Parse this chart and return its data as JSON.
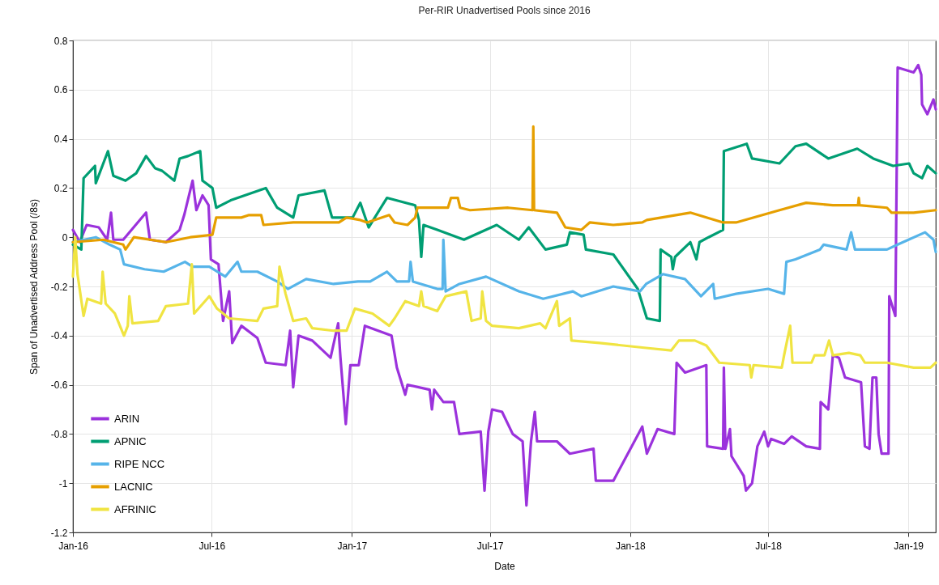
{
  "chart_data": {
    "type": "line",
    "title": "Per-RIR Unadvertised Pools since 2016",
    "xlabel": "Date",
    "ylabel": "Span of Unadvertised Address Pool (/8s)",
    "xlim": [
      "2016-01-01",
      "2019-02-06"
    ],
    "xticks": [
      {
        "value": "2016-01-01",
        "label": "Jan-16"
      },
      {
        "value": "2016-07-01",
        "label": "Jul-16"
      },
      {
        "value": "2017-01-01",
        "label": "Jan-17"
      },
      {
        "value": "2017-07-01",
        "label": "Jul-17"
      },
      {
        "value": "2018-01-01",
        "label": "Jan-18"
      },
      {
        "value": "2018-07-01",
        "label": "Jul-18"
      },
      {
        "value": "2019-01-01",
        "label": "Jan-19"
      }
    ],
    "ylim": [
      -1.2,
      0.8
    ],
    "yticks": [
      -1.2,
      -1,
      -0.8,
      -0.6,
      -0.4,
      -0.2,
      0,
      0.2,
      0.4,
      0.6,
      0.8
    ],
    "grid": true,
    "legend": "bottom left",
    "marker": "none",
    "line_style": "solid",
    "series": [
      {
        "name": "ARIN",
        "color": "#9b32dc",
        "x": [
          "2016-01-01",
          "2016-01-10",
          "2016-01-19",
          "2016-02-04",
          "2016-02-15",
          "2016-02-20",
          "2016-02-23",
          "2016-03-07",
          "2016-04-06",
          "2016-04-11",
          "2016-05-02",
          "2016-05-20",
          "2016-05-26",
          "2016-06-06",
          "2016-06-11",
          "2016-06-19",
          "2016-06-27",
          "2016-06-30",
          "2016-07-10",
          "2016-07-16",
          "2016-07-24",
          "2016-07-28",
          "2016-08-09",
          "2016-08-30",
          "2016-09-10",
          "2016-10-06",
          "2016-10-12",
          "2016-10-16",
          "2016-10-23",
          "2016-11-10",
          "2016-12-04",
          "2016-12-14",
          "2016-12-17",
          "2016-12-24",
          "2016-12-30",
          "2017-01-10",
          "2017-01-18",
          "2017-02-22",
          "2017-03-01",
          "2017-03-12",
          "2017-03-15",
          "2017-04-13",
          "2017-04-16",
          "2017-04-19",
          "2017-05-01",
          "2017-05-15",
          "2017-05-22",
          "2017-06-19",
          "2017-06-24",
          "2017-06-29",
          "2017-07-04",
          "2017-07-17",
          "2017-07-31",
          "2017-08-13",
          "2017-08-18",
          "2017-08-24",
          "2017-08-29",
          "2017-09-01",
          "2017-09-27",
          "2017-10-14",
          "2017-11-14",
          "2017-11-17",
          "2017-12-10",
          "2018-01-17",
          "2018-01-23",
          "2018-02-06",
          "2018-02-28",
          "2018-03-03",
          "2018-03-14",
          "2018-04-11",
          "2018-04-12",
          "2018-05-03",
          "2018-05-04",
          "2018-05-06",
          "2018-05-12",
          "2018-05-14",
          "2018-05-30",
          "2018-06-02",
          "2018-06-10",
          "2018-06-17",
          "2018-06-26",
          "2018-07-01",
          "2018-07-05",
          "2018-07-22",
          "2018-08-01",
          "2018-08-20",
          "2018-09-07",
          "2018-09-08",
          "2018-09-18",
          "2018-09-24",
          "2018-10-02",
          "2018-10-10",
          "2018-10-31",
          "2018-11-05",
          "2018-11-11",
          "2018-11-15",
          "2018-11-20",
          "2018-11-23",
          "2018-11-27",
          "2018-12-06",
          "2018-12-07",
          "2018-12-15",
          "2018-12-18",
          "2019-01-08",
          "2019-01-14",
          "2019-01-18",
          "2019-01-19",
          "2019-01-26",
          "2019-02-03",
          "2019-02-06"
        ],
        "values": [
          0.03,
          -0.02,
          0.05,
          0.04,
          -0.01,
          0.1,
          -0.01,
          -0.01,
          0.1,
          -0.01,
          -0.02,
          0.03,
          0.09,
          0.23,
          0.11,
          0.17,
          0.13,
          -0.09,
          -0.11,
          -0.34,
          -0.22,
          -0.43,
          -0.36,
          -0.41,
          -0.51,
          -0.52,
          -0.38,
          -0.61,
          -0.4,
          -0.42,
          -0.49,
          -0.35,
          -0.49,
          -0.76,
          -0.52,
          -0.52,
          -0.36,
          -0.4,
          -0.53,
          -0.64,
          -0.6,
          -0.62,
          -0.7,
          -0.62,
          -0.67,
          -0.67,
          -0.8,
          -0.79,
          -1.03,
          -0.79,
          -0.7,
          -0.71,
          -0.8,
          -0.83,
          -1.09,
          -0.83,
          -0.71,
          -0.83,
          -0.83,
          -0.88,
          -0.86,
          -0.99,
          -0.99,
          -0.77,
          -0.88,
          -0.78,
          -0.8,
          -0.51,
          -0.55,
          -0.52,
          -0.85,
          -0.86,
          -0.53,
          -0.86,
          -0.78,
          -0.89,
          -0.97,
          -1.03,
          -1,
          -0.85,
          -0.79,
          -0.85,
          -0.82,
          -0.84,
          -0.81,
          -0.85,
          -0.86,
          -0.67,
          -0.7,
          -0.48,
          -0.49,
          -0.57,
          -0.59,
          -0.85,
          -0.86,
          -0.57,
          -0.57,
          -0.8,
          -0.88,
          -0.88,
          -0.24,
          -0.32,
          0.69,
          0.67,
          0.7,
          0.66,
          0.54,
          0.5,
          0.56,
          0.52
        ]
      },
      {
        "name": "APNIC",
        "color": "#009e73",
        "x": [
          "2016-01-01",
          "2016-01-12",
          "2016-01-15",
          "2016-01-30",
          "2016-01-31",
          "2016-02-16",
          "2016-02-23",
          "2016-03-10",
          "2016-03-24",
          "2016-04-06",
          "2016-04-18",
          "2016-04-27",
          "2016-05-13",
          "2016-05-20",
          "2016-05-31",
          "2016-06-16",
          "2016-06-19",
          "2016-07-02",
          "2016-07-07",
          "2016-07-26",
          "2016-09-10",
          "2016-09-25",
          "2016-10-16",
          "2016-10-23",
          "2016-11-26",
          "2016-12-06",
          "2017-01-02",
          "2017-01-12",
          "2017-01-23",
          "2017-02-16",
          "2017-03-25",
          "2017-03-30",
          "2017-04-02",
          "2017-04-05",
          "2017-04-23",
          "2017-05-28",
          "2017-07-10",
          "2017-08-08",
          "2017-08-21",
          "2017-09-12",
          "2017-10-10",
          "2017-10-14",
          "2017-11-01",
          "2017-11-04",
          "2017-12-10",
          "2018-01-11",
          "2018-01-23",
          "2018-02-09",
          "2018-02-10",
          "2018-02-24",
          "2018-02-26",
          "2018-03-01",
          "2018-03-21",
          "2018-03-29",
          "2018-04-02",
          "2018-04-14",
          "2018-05-03",
          "2018-05-04",
          "2018-05-24",
          "2018-06-03",
          "2018-06-10",
          "2018-07-16",
          "2018-08-06",
          "2018-08-20",
          "2018-09-18",
          "2018-10-26",
          "2018-11-16",
          "2018-12-12",
          "2019-01-02",
          "2019-01-08",
          "2019-01-19",
          "2019-01-26",
          "2019-02-06"
        ],
        "values": [
          -0.03,
          -0.05,
          0.24,
          0.29,
          0.22,
          0.35,
          0.25,
          0.23,
          0.26,
          0.33,
          0.28,
          0.27,
          0.23,
          0.32,
          0.33,
          0.35,
          0.23,
          0.2,
          0.12,
          0.15,
          0.2,
          0.12,
          0.08,
          0.17,
          0.19,
          0.08,
          0.08,
          0.14,
          0.04,
          0.16,
          0.13,
          0.07,
          -0.08,
          0.05,
          0.03,
          -0.01,
          0.05,
          -0.01,
          0.04,
          -0.05,
          -0.03,
          0.02,
          0.01,
          -0.05,
          -0.07,
          -0.21,
          -0.33,
          -0.34,
          -0.05,
          -0.08,
          -0.13,
          -0.08,
          -0.02,
          -0.09,
          -0.02,
          0,
          0.03,
          0.35,
          0.37,
          0.38,
          0.32,
          0.3,
          0.37,
          0.38,
          0.32,
          0.36,
          0.32,
          0.29,
          0.3,
          0.26,
          0.24,
          0.29,
          0.26
        ]
      },
      {
        "name": "RIPE NCC",
        "color": "#56b4e9",
        "x": [
          "2016-01-01",
          "2016-01-31",
          "2016-02-18",
          "2016-03-03",
          "2016-03-08",
          "2016-04-04",
          "2016-04-29",
          "2016-05-27",
          "2016-06-06",
          "2016-06-28",
          "2016-07-19",
          "2016-08-04",
          "2016-08-09",
          "2016-08-30",
          "2016-09-25",
          "2016-10-09",
          "2016-11-02",
          "2016-12-08",
          "2017-01-09",
          "2017-01-25",
          "2017-02-16",
          "2017-03-01",
          "2017-03-17",
          "2017-03-19",
          "2017-03-22",
          "2017-04-23",
          "2017-04-30",
          "2017-05-01",
          "2017-05-04",
          "2017-05-22",
          "2017-06-26",
          "2017-08-08",
          "2017-09-09",
          "2017-10-18",
          "2017-10-29",
          "2017-12-10",
          "2018-01-14",
          "2018-01-22",
          "2018-02-13",
          "2018-03-14",
          "2018-04-04",
          "2018-04-20",
          "2018-04-22",
          "2018-05-20",
          "2018-07-01",
          "2018-07-22",
          "2018-07-25",
          "2018-08-06",
          "2018-09-07",
          "2018-09-12",
          "2018-10-12",
          "2018-10-18",
          "2018-10-23",
          "2018-12-04",
          "2018-12-18",
          "2019-01-23",
          "2019-02-03",
          "2019-02-06"
        ],
        "values": [
          -0.02,
          0,
          -0.03,
          -0.05,
          -0.11,
          -0.13,
          -0.14,
          -0.1,
          -0.12,
          -0.12,
          -0.16,
          -0.1,
          -0.14,
          -0.14,
          -0.18,
          -0.21,
          -0.17,
          -0.19,
          -0.18,
          -0.18,
          -0.14,
          -0.18,
          -0.18,
          -0.1,
          -0.18,
          -0.21,
          -0.21,
          -0.01,
          -0.22,
          -0.19,
          -0.16,
          -0.22,
          -0.25,
          -0.22,
          -0.24,
          -0.2,
          -0.22,
          -0.19,
          -0.15,
          -0.17,
          -0.24,
          -0.19,
          -0.25,
          -0.23,
          -0.21,
          -0.23,
          -0.1,
          -0.09,
          -0.05,
          -0.03,
          -0.05,
          0.02,
          -0.05,
          -0.05,
          -0.03,
          0.02,
          -0.01,
          -0.06
        ]
      },
      {
        "name": "LACNIC",
        "color": "#e69f00",
        "x": [
          "2016-01-01",
          "2016-02-10",
          "2016-03-07",
          "2016-03-10",
          "2016-03-21",
          "2016-05-02",
          "2016-06-03",
          "2016-07-02",
          "2016-07-07",
          "2016-08-09",
          "2016-08-19",
          "2016-09-04",
          "2016-09-07",
          "2016-10-16",
          "2016-12-15",
          "2016-12-25",
          "2017-01-12",
          "2017-01-21",
          "2017-02-19",
          "2017-02-26",
          "2017-03-15",
          "2017-03-25",
          "2017-03-28",
          "2017-05-07",
          "2017-05-11",
          "2017-05-20",
          "2017-05-23",
          "2017-06-05",
          "2017-07-25",
          "2017-08-26",
          "2017-08-27",
          "2017-08-28",
          "2017-09-27",
          "2017-10-08",
          "2017-10-29",
          "2017-11-09",
          "2017-12-10",
          "2018-01-17",
          "2018-01-23",
          "2018-03-21",
          "2018-05-03",
          "2018-05-20",
          "2018-07-16",
          "2018-08-20",
          "2018-09-24",
          "2018-10-27",
          "2018-10-28",
          "2018-10-29",
          "2018-12-04",
          "2018-12-10",
          "2019-01-08",
          "2019-02-06"
        ],
        "values": [
          -0.02,
          -0.01,
          -0.03,
          -0.05,
          0,
          -0.02,
          0,
          0.01,
          0.08,
          0.08,
          0.09,
          0.09,
          0.05,
          0.06,
          0.06,
          0.08,
          0.07,
          0.06,
          0.09,
          0.06,
          0.05,
          0.08,
          0.12,
          0.12,
          0.16,
          0.16,
          0.12,
          0.11,
          0.12,
          0.11,
          0.45,
          0.11,
          0.1,
          0.04,
          0.03,
          0.06,
          0.05,
          0.06,
          0.07,
          0.1,
          0.06,
          0.06,
          0.11,
          0.14,
          0.13,
          0.13,
          0.16,
          0.13,
          0.12,
          0.1,
          0.1,
          0.11
        ]
      },
      {
        "name": "AFRINIC",
        "color": "#f0e442",
        "x": [
          "2016-01-01",
          "2016-01-04",
          "2016-01-07",
          "2016-01-15",
          "2016-01-20",
          "2016-02-07",
          "2016-02-09",
          "2016-02-13",
          "2016-02-25",
          "2016-03-08",
          "2016-03-13",
          "2016-03-15",
          "2016-03-19",
          "2016-04-22",
          "2016-05-02",
          "2016-05-31",
          "2016-06-05",
          "2016-06-08",
          "2016-06-28",
          "2016-07-08",
          "2016-07-24",
          "2016-08-30",
          "2016-09-07",
          "2016-09-25",
          "2016-09-28",
          "2016-10-06",
          "2016-10-16",
          "2016-11-02",
          "2016-11-10",
          "2016-12-08",
          "2016-12-25",
          "2017-01-05",
          "2017-01-28",
          "2017-02-19",
          "2017-02-26",
          "2017-03-12",
          "2017-03-30",
          "2017-04-02",
          "2017-04-05",
          "2017-04-23",
          "2017-05-04",
          "2017-05-31",
          "2017-06-07",
          "2017-06-19",
          "2017-06-21",
          "2017-06-26",
          "2017-07-04",
          "2017-08-08",
          "2017-09-05",
          "2017-09-12",
          "2017-09-27",
          "2017-09-30",
          "2017-10-14",
          "2017-10-16",
          "2017-11-22",
          "2018-01-22",
          "2018-02-24",
          "2018-03-06",
          "2018-03-27",
          "2018-04-11",
          "2018-04-28",
          "2018-06-07",
          "2018-06-09",
          "2018-06-12",
          "2018-07-19",
          "2018-07-22",
          "2018-07-30",
          "2018-08-02",
          "2018-08-27",
          "2018-08-31",
          "2018-09-13",
          "2018-09-19",
          "2018-09-24",
          "2018-10-15",
          "2018-10-30",
          "2018-11-05",
          "2018-12-04",
          "2019-01-08",
          "2019-01-30",
          "2019-02-06"
        ],
        "values": [
          -0.16,
          0,
          -0.15,
          -0.32,
          -0.25,
          -0.27,
          -0.14,
          -0.27,
          -0.31,
          -0.4,
          -0.36,
          -0.24,
          -0.35,
          -0.34,
          -0.28,
          -0.27,
          -0.11,
          -0.31,
          -0.24,
          -0.29,
          -0.33,
          -0.34,
          -0.29,
          -0.28,
          -0.12,
          -0.23,
          -0.34,
          -0.33,
          -0.37,
          -0.38,
          -0.38,
          -0.29,
          -0.31,
          -0.36,
          -0.33,
          -0.26,
          -0.28,
          -0.22,
          -0.28,
          -0.3,
          -0.24,
          -0.22,
          -0.34,
          -0.33,
          -0.22,
          -0.34,
          -0.36,
          -0.37,
          -0.35,
          -0.37,
          -0.26,
          -0.36,
          -0.33,
          -0.42,
          -0.43,
          -0.45,
          -0.46,
          -0.42,
          -0.42,
          -0.44,
          -0.51,
          -0.52,
          -0.57,
          -0.52,
          -0.53,
          -0.48,
          -0.36,
          -0.51,
          -0.51,
          -0.48,
          -0.48,
          -0.42,
          -0.48,
          -0.47,
          -0.48,
          -0.51,
          -0.51,
          -0.53,
          -0.53,
          -0.51
        ]
      }
    ]
  }
}
